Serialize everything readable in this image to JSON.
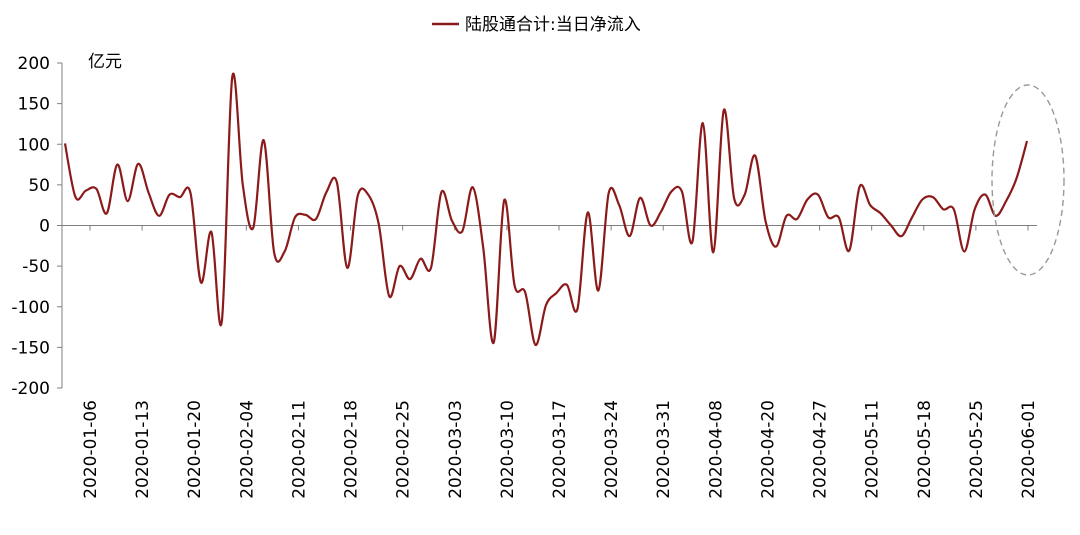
{
  "chart_data": {
    "type": "line",
    "legend": {
      "label": "陆股通合计:当日净流入",
      "position": "top-center"
    },
    "ylabel": "亿元",
    "ylim": [
      -200,
      200
    ],
    "yticks": [
      200,
      150,
      100,
      50,
      0,
      -50,
      -100,
      -150,
      -200
    ],
    "ytick_labels": [
      "200",
      "150",
      "100",
      "50",
      "0",
      "-50",
      "-100",
      "-150",
      "-200"
    ],
    "xtick_labels": [
      "2020-01-06",
      "2020-01-13",
      "2020-01-20",
      "2020-02-04",
      "2020-02-11",
      "2020-02-18",
      "2020-02-25",
      "2020-03-03",
      "2020-03-10",
      "2020-03-17",
      "2020-03-24",
      "2020-03-31",
      "2020-04-08",
      "2020-04-20",
      "2020-04-27",
      "2020-05-11",
      "2020-05-18",
      "2020-05-25",
      "2020-06-01"
    ],
    "series": [
      {
        "name": "陆股通合计:当日净流入",
        "color": "#8b1a1a",
        "values": [
          101,
          35,
          43,
          45,
          15,
          75,
          30,
          76,
          40,
          12,
          38,
          35,
          40,
          -70,
          -8,
          -118,
          183,
          50,
          -3,
          105,
          -33,
          -32,
          10,
          13,
          8,
          41,
          53,
          -52,
          37,
          38,
          2,
          -87,
          -50,
          -66,
          -41,
          -52,
          41,
          6,
          -7,
          47,
          -28,
          -144,
          31,
          -74,
          -82,
          -147,
          -98,
          -83,
          -73,
          -103,
          16,
          -80,
          40,
          25,
          -13,
          34,
          0,
          17,
          42,
          42,
          -20,
          126,
          -33,
          142,
          33,
          38,
          86,
          5,
          -26,
          12,
          8,
          32,
          38,
          10,
          10,
          -31,
          48,
          25,
          15,
          0,
          -13,
          10,
          32,
          35,
          20,
          20,
          -32,
          20,
          38,
          12,
          30,
          58,
          104
        ]
      }
    ],
    "annotation": {
      "type": "dashed-ellipse",
      "color": "#999999"
    }
  }
}
